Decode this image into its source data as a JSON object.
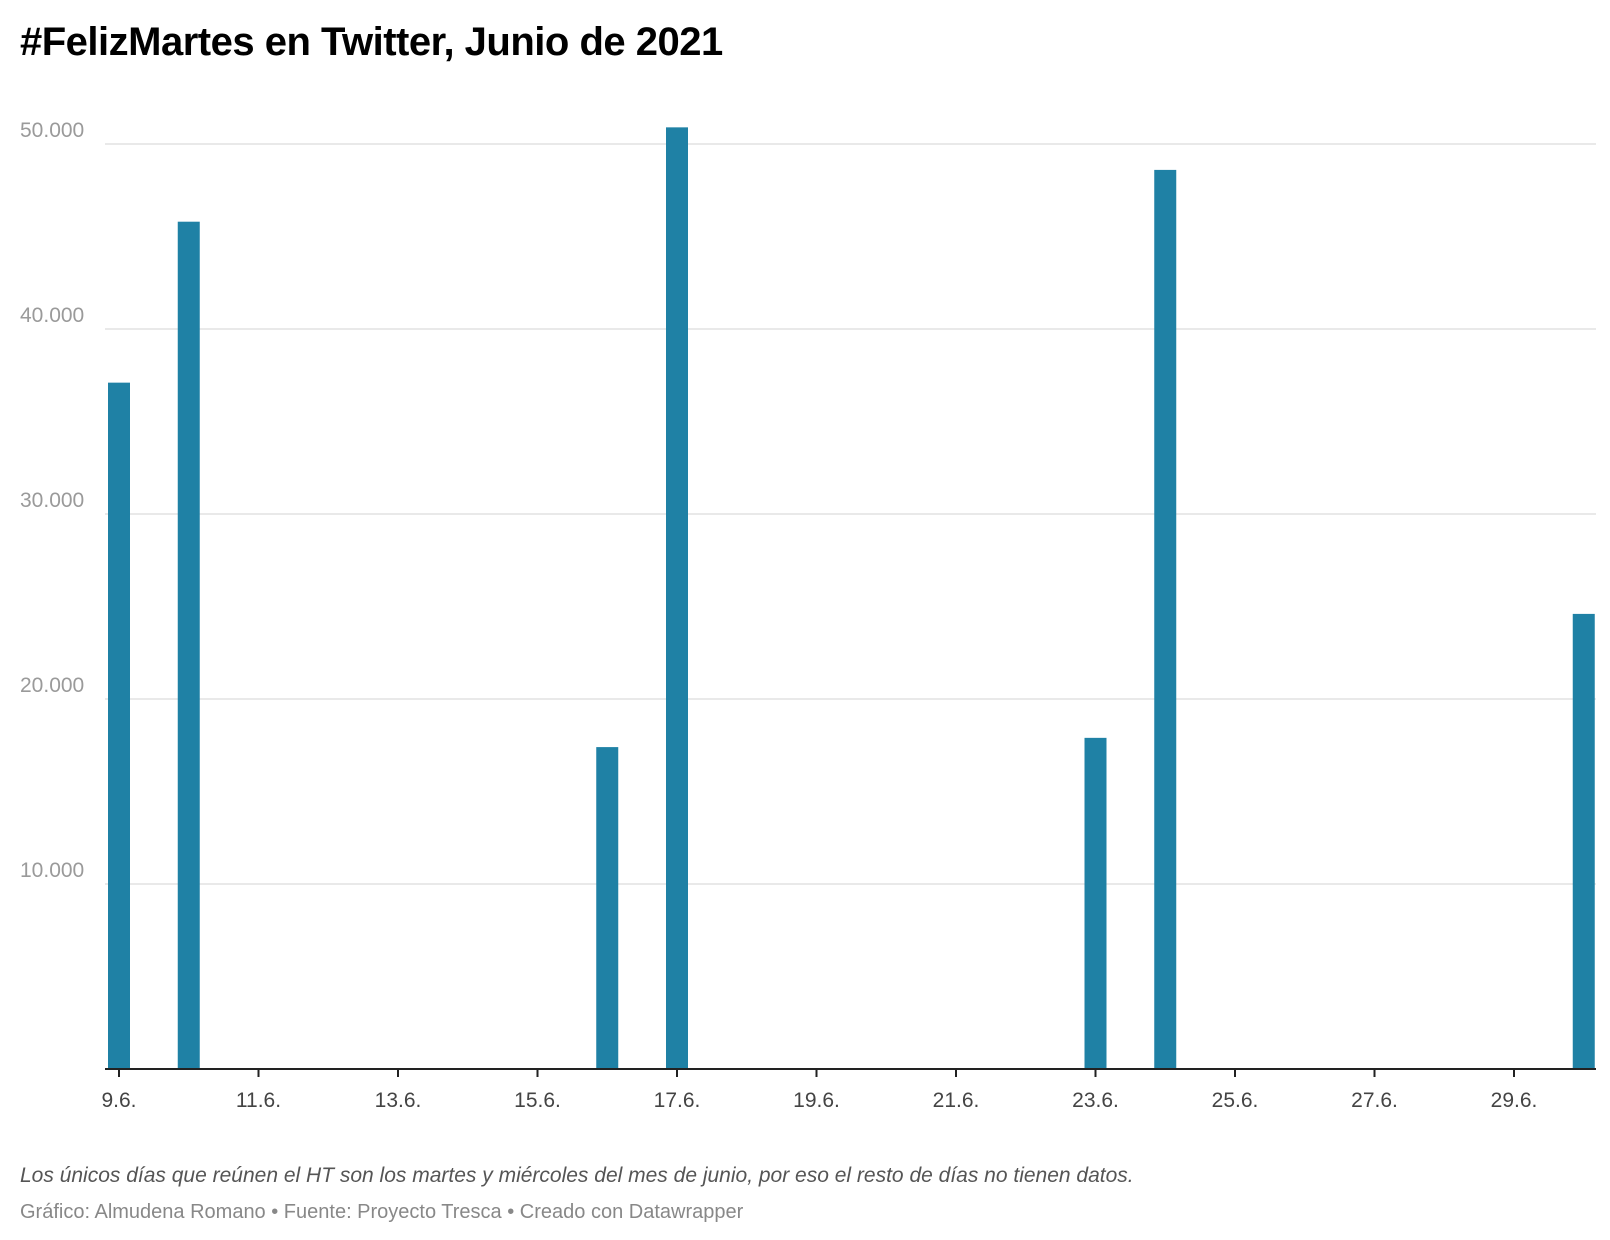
{
  "title": "#FelizMartes en Twitter, Junio de 2021",
  "note": "Los únicos días que reúnen el HT son los martes y miércoles del mes de junio, por eso el resto de días no tienen datos.",
  "footer": "Gráfico: Almudena Romano • Fuente: Proyecto Tresca • Creado con Datawrapper",
  "colors": {
    "bar": "#1f81a5",
    "grid": "#e2e2e2",
    "axis": "#222222"
  },
  "chart_data": {
    "type": "bar",
    "x_domain": [
      9,
      30
    ],
    "ylim": [
      0,
      50000
    ],
    "yticks": [
      {
        "value": 10000,
        "label": "10.000"
      },
      {
        "value": 20000,
        "label": "20.000"
      },
      {
        "value": 30000,
        "label": "30.000"
      },
      {
        "value": 40000,
        "label": "40.000"
      },
      {
        "value": 50000,
        "label": "50.000"
      }
    ],
    "xticks": [
      {
        "day": 9,
        "label": "9.6."
      },
      {
        "day": 11,
        "label": "11.6."
      },
      {
        "day": 13,
        "label": "13.6."
      },
      {
        "day": 15,
        "label": "15.6."
      },
      {
        "day": 17,
        "label": "17.6."
      },
      {
        "day": 19,
        "label": "19.6."
      },
      {
        "day": 21,
        "label": "21.6."
      },
      {
        "day": 23,
        "label": "23.6."
      },
      {
        "day": 25,
        "label": "25.6."
      },
      {
        "day": 27,
        "label": "27.6."
      },
      {
        "day": 29,
        "label": "29.6."
      }
    ],
    "bars": [
      {
        "day": 9,
        "value": 37100
      },
      {
        "day": 10,
        "value": 45800
      },
      {
        "day": 16,
        "value": 17400
      },
      {
        "day": 17,
        "value": 50900
      },
      {
        "day": 23,
        "value": 17900
      },
      {
        "day": 24,
        "value": 48600
      },
      {
        "day": 30,
        "value": 24600
      }
    ],
    "grid": true,
    "legend": "none"
  }
}
